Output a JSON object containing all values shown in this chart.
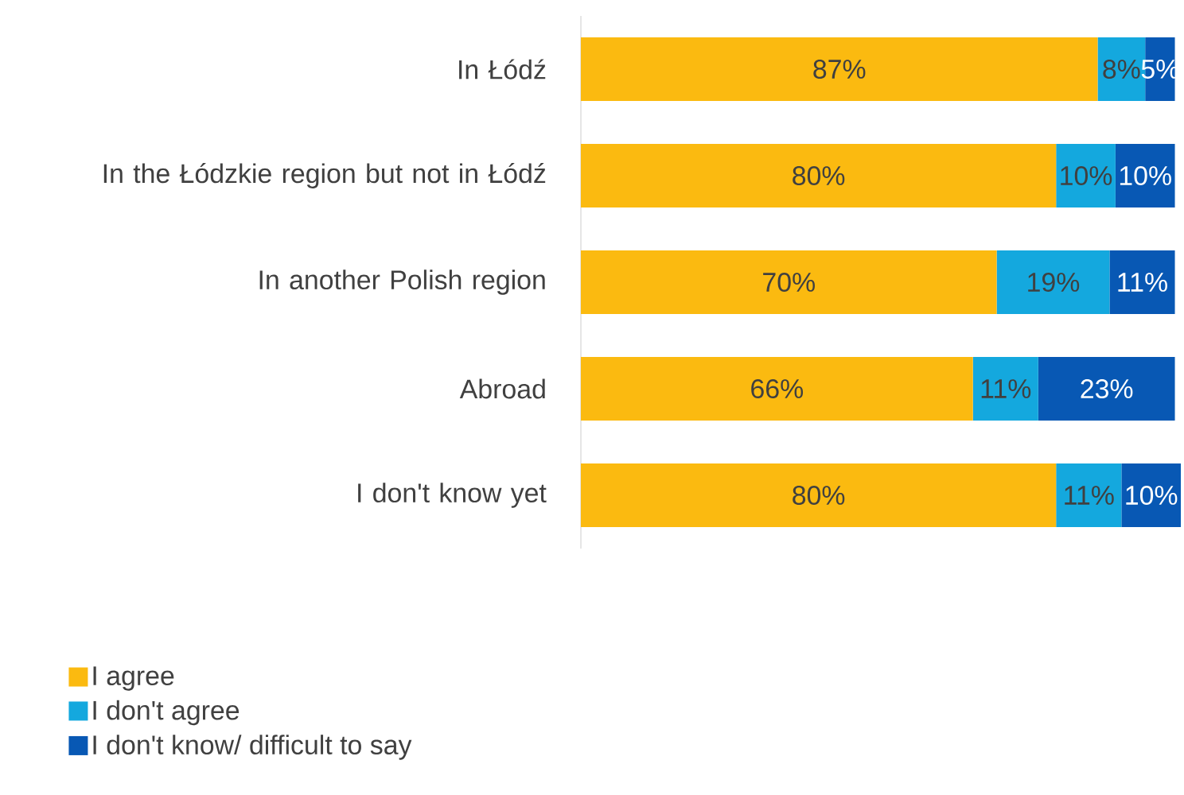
{
  "chart_data": {
    "type": "bar",
    "orientation": "horizontal",
    "stacked": true,
    "legend": "bottom left",
    "categories": [
      "In Łódź",
      "In the Łódzkie region but not in Łódź",
      "In another Polish region",
      "Abroad",
      "I don't know yet"
    ],
    "series": [
      {
        "name": "I agree",
        "color": "#fbba10",
        "values": [
          87,
          80,
          70,
          66,
          80
        ],
        "value_labels": [
          "87%",
          "80%",
          "70%",
          "66%",
          "80%"
        ]
      },
      {
        "name": "I don't agree",
        "color": "#14a8de",
        "values": [
          8,
          10,
          19,
          11,
          11
        ],
        "value_labels": [
          "8%",
          "10%",
          "19%",
          "11%",
          "11%"
        ]
      },
      {
        "name": "I don't know/ difficult to say",
        "color": "#0858b4",
        "values": [
          5,
          10,
          11,
          23,
          10
        ],
        "value_labels": [
          "5%",
          "10%",
          "11%",
          "23%",
          "10%"
        ]
      }
    ]
  }
}
